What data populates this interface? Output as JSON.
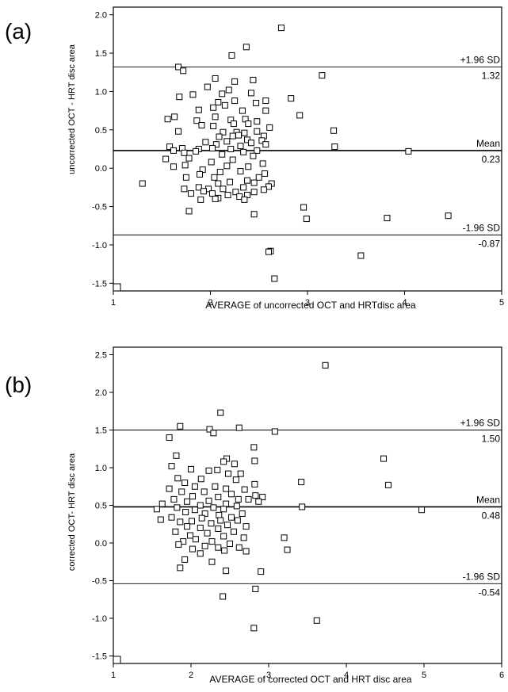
{
  "chart_data": [
    {
      "panel_label": "(a)",
      "type": "scatter",
      "xlabel": "AVERAGE of uncorrected OCT and HRTdisc area",
      "ylabel": "uncorrected OCT - HRT disc area",
      "xlim": [
        1,
        5
      ],
      "ylim": [
        -1.6,
        2.1
      ],
      "x_ticks": [
        1,
        2,
        3,
        4,
        5
      ],
      "y_ticks": [
        -1.5,
        -1.0,
        -0.5,
        0.0,
        0.5,
        1.0,
        1.5,
        2.0
      ],
      "y_tick_labels": [
        "-1.5",
        "-1.0",
        "-0.5",
        "0.0",
        "0.5",
        "1.0",
        "1.5",
        "2.0"
      ],
      "reference_lines": [
        {
          "label": "+1.96 SD",
          "value": 1.32,
          "value_label": "1.32"
        },
        {
          "label": "Mean",
          "value": 0.23,
          "value_label": "0.23"
        },
        {
          "label": "-1.96 SD",
          "value": -0.87,
          "value_label": "-0.87"
        }
      ],
      "points": [
        [
          2.73,
          1.83
        ],
        [
          2.37,
          1.58
        ],
        [
          2.22,
          1.47
        ],
        [
          1.67,
          1.32
        ],
        [
          1.72,
          1.27
        ],
        [
          3.15,
          1.21
        ],
        [
          2.05,
          1.17
        ],
        [
          2.25,
          1.13
        ],
        [
          2.44,
          1.15
        ],
        [
          1.97,
          1.06
        ],
        [
          2.12,
          0.97
        ],
        [
          2.19,
          1.02
        ],
        [
          2.42,
          0.98
        ],
        [
          2.83,
          0.91
        ],
        [
          1.68,
          0.93
        ],
        [
          1.82,
          0.96
        ],
        [
          2.57,
          0.88
        ],
        [
          2.25,
          0.88
        ],
        [
          2.08,
          0.86
        ],
        [
          2.15,
          0.82
        ],
        [
          2.47,
          0.85
        ],
        [
          1.88,
          0.76
        ],
        [
          2.03,
          0.79
        ],
        [
          2.33,
          0.75
        ],
        [
          2.57,
          0.75
        ],
        [
          2.92,
          0.69
        ],
        [
          2.05,
          0.67
        ],
        [
          1.56,
          0.64
        ],
        [
          1.63,
          0.67
        ],
        [
          1.86,
          0.62
        ],
        [
          2.21,
          0.63
        ],
        [
          2.36,
          0.64
        ],
        [
          2.48,
          0.61
        ],
        [
          2.39,
          0.58
        ],
        [
          2.03,
          0.55
        ],
        [
          2.24,
          0.58
        ],
        [
          1.91,
          0.56
        ],
        [
          2.61,
          0.53
        ],
        [
          1.67,
          0.48
        ],
        [
          2.13,
          0.47
        ],
        [
          2.27,
          0.47
        ],
        [
          2.48,
          0.48
        ],
        [
          2.35,
          0.46
        ],
        [
          2.29,
          0.43
        ],
        [
          2.23,
          0.42
        ],
        [
          2.09,
          0.41
        ],
        [
          2.55,
          0.42
        ],
        [
          3.27,
          0.49
        ],
        [
          2.38,
          0.37
        ],
        [
          2.53,
          0.36
        ],
        [
          2.17,
          0.35
        ],
        [
          2.42,
          0.33
        ],
        [
          1.95,
          0.34
        ],
        [
          2.06,
          0.31
        ],
        [
          2.57,
          0.31
        ],
        [
          3.28,
          0.28
        ],
        [
          1.58,
          0.28
        ],
        [
          1.71,
          0.26
        ],
        [
          2.31,
          0.29
        ],
        [
          2.02,
          0.26
        ],
        [
          1.88,
          0.25
        ],
        [
          2.21,
          0.25
        ],
        [
          2.48,
          0.23
        ],
        [
          1.62,
          0.23
        ],
        [
          1.85,
          0.22
        ],
        [
          2.34,
          0.21
        ],
        [
          4.04,
          0.22
        ],
        [
          1.73,
          0.2
        ],
        [
          2.12,
          0.18
        ],
        [
          2.44,
          0.16
        ],
        [
          1.54,
          0.12
        ],
        [
          1.78,
          0.13
        ],
        [
          2.23,
          0.11
        ],
        [
          2.01,
          0.08
        ],
        [
          2.54,
          0.06
        ],
        [
          2.17,
          0.03
        ],
        [
          1.74,
          0.04
        ],
        [
          1.62,
          0.02
        ],
        [
          2.39,
          0.02
        ],
        [
          1.92,
          -0.02
        ],
        [
          2.31,
          -0.04
        ],
        [
          2.1,
          -0.05
        ],
        [
          2.56,
          -0.07
        ],
        [
          1.75,
          -0.12
        ],
        [
          1.89,
          -0.08
        ],
        [
          2.04,
          -0.12
        ],
        [
          2.5,
          -0.12
        ],
        [
          1.3,
          -0.2
        ],
        [
          2.2,
          -0.18
        ],
        [
          2.45,
          -0.19
        ],
        [
          2.38,
          -0.16
        ],
        [
          2.08,
          -0.2
        ],
        [
          2.63,
          -0.2
        ],
        [
          1.88,
          -0.25
        ],
        [
          1.98,
          -0.27
        ],
        [
          2.13,
          -0.27
        ],
        [
          2.34,
          -0.25
        ],
        [
          2.6,
          -0.24
        ],
        [
          1.73,
          -0.27
        ],
        [
          2.55,
          -0.28
        ],
        [
          1.93,
          -0.3
        ],
        [
          2.26,
          -0.31
        ],
        [
          2.45,
          -0.31
        ],
        [
          2.02,
          -0.33
        ],
        [
          2.38,
          -0.35
        ],
        [
          1.8,
          -0.33
        ],
        [
          2.3,
          -0.37
        ],
        [
          2.18,
          -0.35
        ],
        [
          1.9,
          -0.41
        ],
        [
          2.08,
          -0.39
        ],
        [
          2.35,
          -0.41
        ],
        [
          1.78,
          -0.56
        ],
        [
          2.05,
          -0.4
        ],
        [
          2.45,
          -0.6
        ],
        [
          2.96,
          -0.51
        ],
        [
          2.99,
          -0.66
        ],
        [
          3.82,
          -0.65
        ],
        [
          4.45,
          -0.62
        ],
        [
          2.62,
          -1.08
        ],
        [
          2.6,
          -1.09
        ],
        [
          3.55,
          -1.14
        ],
        [
          2.66,
          -1.44
        ]
      ]
    },
    {
      "panel_label": "(b)",
      "type": "scatter",
      "xlabel": "AVERAGE of corrected OCT and HRT disc area",
      "ylabel": "corrected OCT- HRT disc area",
      "xlim": [
        1,
        6
      ],
      "ylim": [
        -1.6,
        2.6
      ],
      "x_ticks": [
        1,
        2,
        3,
        4,
        5,
        6
      ],
      "y_ticks": [
        -1.5,
        -1.0,
        -0.5,
        0.0,
        0.5,
        1.0,
        1.5,
        2.0,
        2.5
      ],
      "y_tick_labels": [
        "-1.5",
        "-1.0",
        "-0.5",
        "0.0",
        "0.5",
        "1.0",
        "1.5",
        "2.0",
        "2.5"
      ],
      "reference_lines": [
        {
          "label": "+1.96 SD",
          "value": 1.5,
          "value_label": "1.50"
        },
        {
          "label": "Mean",
          "value": 0.48,
          "value_label": "0.48"
        },
        {
          "label": "-1.96 SD",
          "value": -0.54,
          "value_label": "-0.54"
        }
      ],
      "points": [
        [
          3.73,
          2.36
        ],
        [
          2.38,
          1.73
        ],
        [
          1.86,
          1.55
        ],
        [
          2.24,
          1.51
        ],
        [
          2.62,
          1.53
        ],
        [
          3.08,
          1.48
        ],
        [
          2.29,
          1.46
        ],
        [
          1.72,
          1.4
        ],
        [
          2.81,
          1.27
        ],
        [
          1.81,
          1.16
        ],
        [
          2.46,
          1.12
        ],
        [
          4.48,
          1.12
        ],
        [
          2.42,
          1.08
        ],
        [
          2.56,
          1.05
        ],
        [
          2.82,
          1.09
        ],
        [
          1.75,
          1.02
        ],
        [
          2.0,
          0.98
        ],
        [
          2.23,
          0.96
        ],
        [
          2.34,
          0.97
        ],
        [
          2.48,
          0.92
        ],
        [
          2.64,
          0.92
        ],
        [
          1.83,
          0.86
        ],
        [
          2.13,
          0.85
        ],
        [
          2.58,
          0.84
        ],
        [
          2.82,
          0.78
        ],
        [
          3.42,
          0.81
        ],
        [
          4.54,
          0.77
        ],
        [
          1.92,
          0.8
        ],
        [
          2.05,
          0.75
        ],
        [
          2.31,
          0.75
        ],
        [
          2.45,
          0.72
        ],
        [
          1.72,
          0.72
        ],
        [
          2.69,
          0.71
        ],
        [
          1.88,
          0.68
        ],
        [
          2.17,
          0.68
        ],
        [
          2.52,
          0.65
        ],
        [
          2.83,
          0.63
        ],
        [
          2.02,
          0.62
        ],
        [
          2.35,
          0.61
        ],
        [
          2.61,
          0.58
        ],
        [
          2.92,
          0.61
        ],
        [
          1.78,
          0.58
        ],
        [
          1.95,
          0.55
        ],
        [
          2.23,
          0.56
        ],
        [
          2.74,
          0.58
        ],
        [
          2.45,
          0.52
        ],
        [
          1.63,
          0.52
        ],
        [
          2.12,
          0.5
        ],
        [
          2.59,
          0.49
        ],
        [
          2.87,
          0.55
        ],
        [
          1.56,
          0.45
        ],
        [
          1.82,
          0.47
        ],
        [
          2.29,
          0.47
        ],
        [
          2.05,
          0.44
        ],
        [
          2.42,
          0.45
        ],
        [
          3.43,
          0.48
        ],
        [
          4.97,
          0.44
        ],
        [
          1.93,
          0.41
        ],
        [
          2.18,
          0.39
        ],
        [
          2.66,
          0.39
        ],
        [
          2.36,
          0.37
        ],
        [
          1.75,
          0.34
        ],
        [
          2.52,
          0.34
        ],
        [
          1.61,
          0.31
        ],
        [
          2.14,
          0.33
        ],
        [
          2.38,
          0.3
        ],
        [
          2.01,
          0.29
        ],
        [
          2.6,
          0.3
        ],
        [
          1.86,
          0.28
        ],
        [
          2.26,
          0.26
        ],
        [
          2.47,
          0.24
        ],
        [
          1.95,
          0.22
        ],
        [
          2.71,
          0.22
        ],
        [
          2.12,
          0.2
        ],
        [
          2.35,
          0.19
        ],
        [
          1.8,
          0.15
        ],
        [
          2.55,
          0.15
        ],
        [
          2.21,
          0.13
        ],
        [
          1.99,
          0.1
        ],
        [
          2.42,
          0.09
        ],
        [
          3.2,
          0.07
        ],
        [
          2.68,
          0.07
        ],
        [
          2.06,
          0.05
        ],
        [
          2.27,
          0.02
        ],
        [
          1.9,
          0.02
        ],
        [
          2.5,
          -0.01
        ],
        [
          1.84,
          -0.02
        ],
        [
          2.18,
          -0.04
        ],
        [
          2.35,
          -0.06
        ],
        [
          2.62,
          -0.06
        ],
        [
          2.02,
          -0.08
        ],
        [
          2.43,
          -0.1
        ],
        [
          3.24,
          -0.09
        ],
        [
          2.71,
          -0.11
        ],
        [
          2.12,
          -0.14
        ],
        [
          1.92,
          -0.22
        ],
        [
          2.27,
          -0.25
        ],
        [
          1.86,
          -0.33
        ],
        [
          2.45,
          -0.37
        ],
        [
          2.9,
          -0.38
        ],
        [
          2.41,
          -0.71
        ],
        [
          2.83,
          -0.61
        ],
        [
          3.62,
          -1.03
        ],
        [
          2.81,
          -1.13
        ]
      ]
    }
  ]
}
